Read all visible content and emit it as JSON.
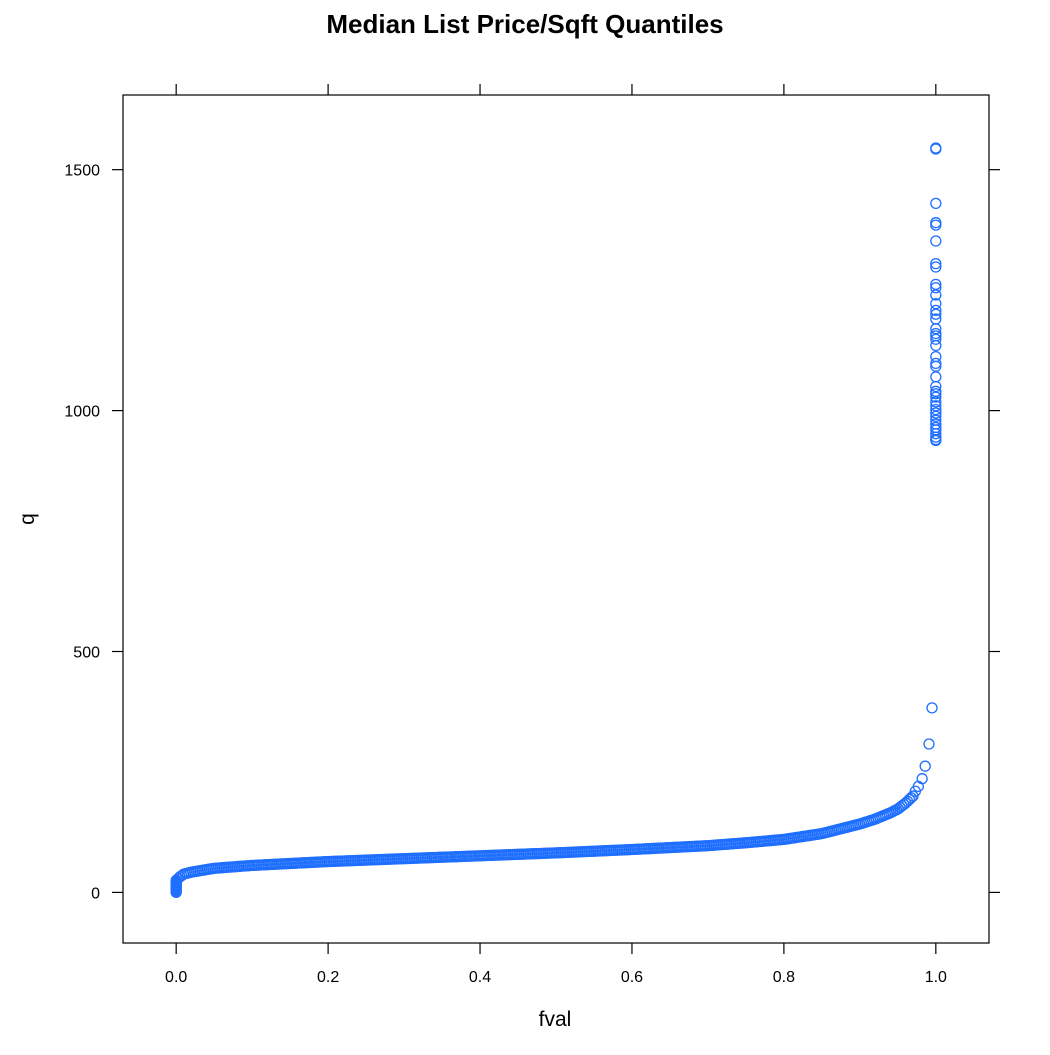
{
  "chart_data": {
    "type": "scatter",
    "title": "Median List Price/Sqft Quantiles",
    "xlabel": "fval",
    "ylabel": "q",
    "xlim": [
      -0.07,
      1.07
    ],
    "ylim": [
      -105,
      1655
    ],
    "x_ticks": [
      0.0,
      0.2,
      0.4,
      0.6,
      0.8,
      1.0
    ],
    "x_tick_labels": [
      "0.0",
      "0.2",
      "0.4",
      "0.6",
      "0.8",
      "1.0"
    ],
    "y_ticks": [
      0,
      500,
      1000,
      1500
    ],
    "y_tick_labels": [
      "0",
      "500",
      "1000",
      "1500"
    ],
    "grid": false,
    "legend": "none",
    "marker": "open-circle",
    "colors": {
      "points": "#1f6fff",
      "frame": "#000000"
    },
    "curve_knots": {
      "fval": [
        0.0,
        0.003,
        0.01,
        0.02,
        0.05,
        0.1,
        0.2,
        0.3,
        0.4,
        0.5,
        0.6,
        0.7,
        0.75,
        0.8,
        0.85,
        0.9,
        0.92,
        0.94,
        0.95,
        0.96,
        0.97
      ],
      "q": [
        22,
        30,
        38,
        42,
        50,
        56,
        64,
        70,
        76,
        82,
        89,
        97,
        103,
        110,
        122,
        142,
        152,
        165,
        173,
        185,
        200
      ]
    },
    "lower_tail": {
      "fval": [
        0,
        0,
        0,
        0,
        0,
        0,
        0,
        0,
        0,
        0,
        0,
        0,
        0,
        0,
        0
      ],
      "q": [
        0,
        2,
        4,
        6,
        8,
        10,
        12,
        14,
        15,
        17,
        18,
        20,
        21,
        23,
        25
      ]
    },
    "upper_tail": {
      "fval": [
        0.973,
        0.977,
        0.982,
        0.986,
        0.991,
        0.995
      ],
      "q": [
        210,
        220,
        236,
        262,
        308,
        383
      ]
    },
    "outliers": {
      "fval": [
        1,
        1,
        1,
        1,
        1,
        1,
        1,
        1,
        1,
        1,
        1,
        1,
        1,
        1,
        1,
        1,
        1,
        1,
        1,
        1,
        1,
        1,
        1,
        1,
        1,
        1,
        1,
        1,
        1,
        1,
        1,
        1,
        1,
        1,
        1,
        1,
        1,
        1,
        1,
        1,
        1
      ],
      "q": [
        1545,
        1543,
        1430,
        1390,
        1385,
        1352,
        1305,
        1298,
        1262,
        1255,
        1240,
        1222,
        1208,
        1200,
        1190,
        1170,
        1160,
        1155,
        1148,
        1135,
        1112,
        1098,
        1092,
        1070,
        1050,
        1040,
        1035,
        1028,
        1018,
        1010,
        1002,
        995,
        988,
        980,
        972,
        965,
        960,
        952,
        945,
        940,
        938
      ]
    }
  }
}
